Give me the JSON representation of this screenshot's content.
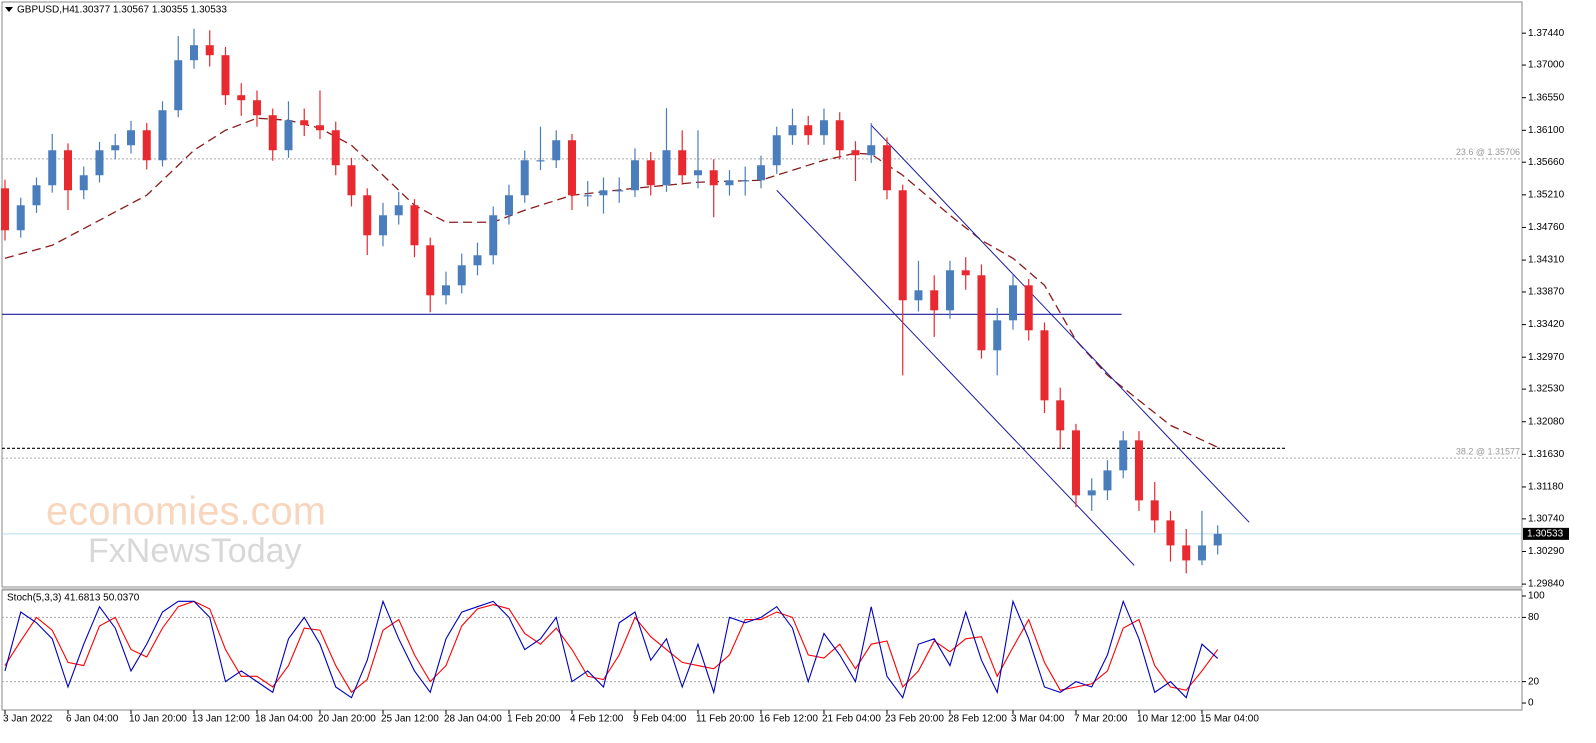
{
  "chart_data": [
    {
      "type": "candlestick",
      "symbol_label": "GBPUSD,H4",
      "ohlc_label": "1.30377 1.30567 1.30355 1.30533",
      "up_color": "#4a7dbb",
      "down_color": "#e8292f",
      "open": [
        1.353,
        1.34721,
        1.35066,
        1.35342,
        1.35825,
        1.35273,
        1.3548,
        1.35825,
        1.35894,
        1.36101,
        1.35687,
        1.36377,
        1.37067,
        1.37274,
        1.37136,
        1.36584,
        1.36515,
        1.36308,
        1.35825,
        1.36239,
        1.3617,
        1.36101,
        1.35618,
        1.35204,
        1.34652,
        1.34928,
        1.35066,
        1.34514,
        1.33824,
        1.33962,
        1.34238,
        1.34376,
        1.34928,
        1.35204,
        1.35687,
        1.35687,
        1.35963,
        1.35204,
        1.35204,
        1.35273,
        1.35273,
        1.35687,
        1.35342,
        1.35825,
        1.3548,
        1.35549,
        1.35342,
        1.35411,
        1.35411,
        1.35618,
        1.36032,
        1.3617,
        1.36032,
        1.36239,
        1.35825,
        1.35756,
        1.35894,
        1.35273,
        1.33755,
        1.33893,
        1.33617,
        1.34169,
        1.341,
        1.33065,
        1.33479,
        1.33962,
        1.33341,
        1.32375,
        1.31961,
        1.31064,
        1.31133,
        1.31409,
        1.31823,
        1.30995,
        1.30719,
        1.30374,
        1.30167,
        1.30374
      ],
      "high": [
        1.3542,
        1.3517,
        1.3545,
        1.3605,
        1.3592,
        1.356,
        1.3594,
        1.3605,
        1.3623,
        1.362,
        1.365,
        1.374,
        1.375,
        1.3748,
        1.3725,
        1.3675,
        1.3665,
        1.364,
        1.365,
        1.364,
        1.3665,
        1.3622,
        1.3572,
        1.353,
        1.351,
        1.3525,
        1.3515,
        1.3462,
        1.3415,
        1.344,
        1.3455,
        1.3505,
        1.3535,
        1.3582,
        1.3615,
        1.361,
        1.3605,
        1.354,
        1.3545,
        1.3545,
        1.3585,
        1.358,
        1.36405,
        1.361,
        1.361,
        1.357,
        1.3555,
        1.356,
        1.3575,
        1.3615,
        1.364,
        1.363,
        1.364,
        1.3635,
        1.3595,
        1.362,
        1.36,
        1.3535,
        1.343,
        1.341,
        1.343,
        1.3435,
        1.3425,
        1.3365,
        1.341,
        1.3405,
        1.3345,
        1.3255,
        1.3205,
        1.313,
        1.3155,
        1.3195,
        1.3195,
        1.3125,
        1.3085,
        1.306,
        1.3085,
        1.3065
      ],
      "low": [
        1.3458,
        1.3462,
        1.3496,
        1.3524,
        1.35,
        1.3515,
        1.3538,
        1.357,
        1.3578,
        1.3556,
        1.356,
        1.3628,
        1.3695,
        1.3698,
        1.3645,
        1.363,
        1.3615,
        1.3568,
        1.3572,
        1.3602,
        1.3598,
        1.3548,
        1.3505,
        1.3438,
        1.345,
        1.348,
        1.3435,
        1.3359,
        1.337,
        1.3385,
        1.341,
        1.3425,
        1.348,
        1.351,
        1.3555,
        1.3558,
        1.35,
        1.3505,
        1.3495,
        1.351,
        1.3518,
        1.352,
        1.3525,
        1.3535,
        1.353,
        1.349,
        1.352,
        1.352,
        1.353,
        1.355,
        1.359,
        1.359,
        1.359,
        1.357,
        1.354,
        1.3565,
        1.3515,
        1.3272,
        1.336,
        1.3325,
        1.335,
        1.339,
        1.3295,
        1.3272,
        1.3335,
        1.332,
        1.322,
        1.317,
        1.309,
        1.3085,
        1.31,
        1.313,
        1.3085,
        1.3055,
        1.3015,
        1.29988,
        1.301,
        1.3025
      ],
      "close": [
        1.34721,
        1.35066,
        1.35342,
        1.35825,
        1.35273,
        1.3548,
        1.35825,
        1.35894,
        1.36101,
        1.35687,
        1.36377,
        1.37067,
        1.37274,
        1.37136,
        1.36584,
        1.36515,
        1.36308,
        1.35825,
        1.36239,
        1.3617,
        1.36101,
        1.35618,
        1.35204,
        1.34652,
        1.34928,
        1.35066,
        1.34514,
        1.33824,
        1.33962,
        1.34238,
        1.34376,
        1.34928,
        1.35204,
        1.35687,
        1.35687,
        1.35963,
        1.35204,
        1.35204,
        1.35273,
        1.35273,
        1.35687,
        1.35342,
        1.35825,
        1.3548,
        1.35549,
        1.35342,
        1.35411,
        1.35411,
        1.35618,
        1.36032,
        1.3617,
        1.36032,
        1.36239,
        1.35825,
        1.35756,
        1.35894,
        1.35273,
        1.33755,
        1.33893,
        1.33617,
        1.34169,
        1.341,
        1.33065,
        1.33479,
        1.33962,
        1.33341,
        1.32375,
        1.31961,
        1.31064,
        1.31133,
        1.31409,
        1.31823,
        1.30995,
        1.30719,
        1.30374,
        1.30167,
        1.30374,
        1.30533
      ],
      "xlim": [
        -0.19,
        96.32
      ],
      "xticks": [
        {
          "value": 0,
          "label": "3 Jan 2022"
        },
        {
          "value": 4,
          "label": "6 Jan 04:00"
        },
        {
          "value": 8,
          "label": "10 Jan 20:00"
        },
        {
          "value": 12,
          "label": "13 Jan 12:00"
        },
        {
          "value": 16,
          "label": "18 Jan 04:00"
        },
        {
          "value": 20,
          "label": "20 Jan 20:00"
        },
        {
          "value": 24,
          "label": "25 Jan 12:00"
        },
        {
          "value": 28,
          "label": "28 Jan 04:00"
        },
        {
          "value": 32,
          "label": "1 Feb 20:00"
        },
        {
          "value": 36,
          "label": "4 Feb 12:00"
        },
        {
          "value": 40,
          "label": "9 Feb 04:00"
        },
        {
          "value": 44,
          "label": "11 Feb 20:00"
        },
        {
          "value": 48,
          "label": "16 Feb 12:00"
        },
        {
          "value": 52,
          "label": "21 Feb 04:00"
        },
        {
          "value": 56,
          "label": "23 Feb 20:00"
        },
        {
          "value": 60,
          "label": "28 Feb 12:00"
        },
        {
          "value": 64,
          "label": "3 Mar 04:00"
        },
        {
          "value": 68,
          "label": "7 Mar 20:00"
        },
        {
          "value": 72,
          "label": "10 Mar 12:00"
        },
        {
          "value": 76,
          "label": "15 Mar 04:00"
        }
      ],
      "ylim": [
        1.298,
        1.3787
      ],
      "yticks": [
        {
          "value": 1.3744,
          "label": "1.37440"
        },
        {
          "value": 1.37,
          "label": "1.37000"
        },
        {
          "value": 1.3655,
          "label": "1.36550"
        },
        {
          "value": 1.361,
          "label": "1.36100"
        },
        {
          "value": 1.3566,
          "label": "1.35660"
        },
        {
          "value": 1.3521,
          "label": "1.35210"
        },
        {
          "value": 1.3476,
          "label": "1.34760"
        },
        {
          "value": 1.3431,
          "label": "1.34310"
        },
        {
          "value": 1.3387,
          "label": "1.33870"
        },
        {
          "value": 1.3342,
          "label": "1.33420"
        },
        {
          "value": 1.3297,
          "label": "1.32970"
        },
        {
          "value": 1.3253,
          "label": "1.32530"
        },
        {
          "value": 1.3208,
          "label": "1.32080"
        },
        {
          "value": 1.3163,
          "label": "1.31630"
        },
        {
          "value": 1.3118,
          "label": "1.31180"
        },
        {
          "value": 1.3074,
          "label": "1.30740"
        },
        {
          "value": 1.3029,
          "label": "1.30290"
        },
        {
          "value": 1.2984,
          "label": "1.29840"
        }
      ],
      "moving_average": {
        "color": "#8b1c1c",
        "x": [
          0,
          3,
          6,
          9,
          12,
          14,
          16,
          18,
          20,
          22,
          24,
          26,
          28,
          31,
          33,
          36,
          40,
          44,
          48,
          50,
          52,
          54,
          55,
          57,
          60,
          62,
          64,
          66,
          68,
          70,
          72,
          74,
          77
        ],
        "values": [
          1.34335,
          1.34514,
          1.34859,
          1.35204,
          1.35825,
          1.36101,
          1.36267,
          1.36239,
          1.36129,
          1.35894,
          1.3548,
          1.35066,
          1.34832,
          1.34832,
          1.34997,
          1.35204,
          1.35301,
          1.35384,
          1.35411,
          1.35549,
          1.35687,
          1.35784,
          1.3577,
          1.3548,
          1.34928,
          1.34583,
          1.34335,
          1.33962,
          1.33203,
          1.3272,
          1.32375,
          1.3203,
          1.31727
        ]
      },
      "channel": [
        {
          "color": "#1c1c9c",
          "x": [
            55,
            79
          ],
          "values": [
            1.3617,
            1.30692
          ]
        },
        {
          "color": "#1c1c9c",
          "x": [
            49,
            71.7
          ],
          "values": [
            1.35273,
            1.30098
          ]
        }
      ],
      "horizontal_lines": [
        {
          "value": 1.33562,
          "x_end": 70.9,
          "color": "#1c1c9c",
          "style": "solid"
        },
        {
          "value": 1.31713,
          "x_end": 81.3,
          "color": "#000000",
          "style": "dotted"
        }
      ],
      "fibo": [
        {
          "value": 1.35706,
          "label": "23.6 @ 1.35706"
        },
        {
          "value": 1.31577,
          "label": "38.2 @ 1.31577"
        }
      ],
      "last_price": {
        "value": 1.30533,
        "label": "1.30533"
      },
      "watermark": [
        "economies.com",
        "FxNewsToday"
      ]
    },
    {
      "type": "stochastic",
      "label": "Stoch(5,3,3) 41.6813 50.0370",
      "xlim": [
        -0.19,
        96.32
      ],
      "ylim": [
        -6.5,
        105.6
      ],
      "yticks": [
        100,
        80,
        20,
        0
      ],
      "series": [
        {
          "color": "#0000c0",
          "values": [
            30,
            85,
            75,
            60,
            15,
            55,
            90,
            70,
            30,
            55,
            85,
            95,
            95,
            80,
            20,
            30,
            20,
            10,
            60,
            80,
            55,
            15,
            5,
            40,
            95,
            60,
            30,
            10,
            60,
            85,
            90,
            95,
            80,
            50,
            60,
            80,
            20,
            30,
            15,
            75,
            85,
            40,
            60,
            15,
            55,
            10,
            80,
            75,
            80,
            90,
            70,
            20,
            65,
            45,
            20,
            90,
            25,
            5,
            55,
            60,
            35,
            85,
            40,
            10,
            95,
            60,
            15,
            10,
            20,
            15,
            45,
            95,
            60,
            10,
            20,
            5,
            55,
            41.6813
          ]
        },
        {
          "color": "#ff0000",
          "values": [
            35,
            58,
            80,
            68,
            38,
            35,
            72,
            80,
            50,
            43,
            70,
            90,
            95,
            88,
            50,
            25,
            25,
            15,
            35,
            70,
            68,
            35,
            10,
            22,
            68,
            78,
            45,
            20,
            35,
            72,
            88,
            92,
            88,
            65,
            55,
            70,
            50,
            25,
            22,
            45,
            80,
            62,
            50,
            38,
            35,
            32,
            45,
            78,
            78,
            85,
            80,
            45,
            42,
            55,
            32,
            55,
            58,
            15,
            30,
            58,
            48,
            60,
            62,
            25,
            52,
            78,
            38,
            12,
            15,
            18,
            30,
            70,
            78,
            35,
            15,
            12,
            30,
            50.037
          ]
        }
      ]
    }
  ]
}
